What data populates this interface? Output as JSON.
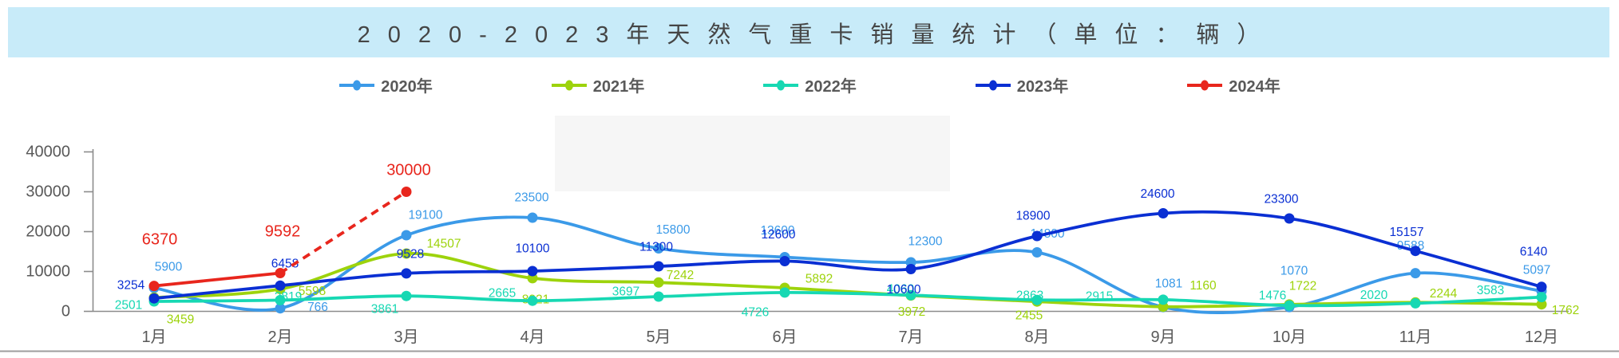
{
  "title": {
    "text": "2020-2023年天然气重卡销量统计（单位：辆）"
  },
  "colors": {
    "title_bar_bg": "#C8EBF9",
    "title_text": "#454545",
    "axis_text": "#595959",
    "axis_line": "#8C8C8C",
    "separator": "#9E9E9E"
  },
  "legend": {
    "items": [
      "2020年",
      "2021年",
      "2022年",
      "2023年",
      "2024年"
    ]
  },
  "chart_data": {
    "type": "line",
    "title": "2020-2023年天然气重卡销量统计（单位：辆）",
    "unit_label": "辆",
    "categories": [
      "1月",
      "2月",
      "3月",
      "4月",
      "5月",
      "6月",
      "7月",
      "8月",
      "9月",
      "10月",
      "11月",
      "12月"
    ],
    "yticks": [
      0,
      10000,
      20000,
      30000,
      40000
    ],
    "ylim": [
      0,
      40000
    ],
    "grid": false,
    "legend_position": "top",
    "series": [
      {
        "name": "2020年",
        "color": "#3B9AE8",
        "values": [
          5900,
          766,
          19100,
          23500,
          15800,
          13600,
          12300,
          14800,
          1081,
          1070,
          9588,
          5097
        ]
      },
      {
        "name": "2021年",
        "color": "#9DD30C",
        "values": [
          3459,
          5598,
          14507,
          8321,
          7242,
          5892,
          3972,
          2455,
          1160,
          1722,
          2244,
          1762
        ]
      },
      {
        "name": "2022年",
        "color": "#17D8B3",
        "values": [
          2501,
          2819,
          3861,
          2665,
          3697,
          4726,
          4060,
          2863,
          2915,
          1476,
          2020,
          3583
        ]
      },
      {
        "name": "2023年",
        "color": "#0A2FD3",
        "values": [
          3254,
          6458,
          9528,
          10100,
          11300,
          12600,
          10600,
          18900,
          24600,
          23300,
          15157,
          6140
        ]
      },
      {
        "name": "2024年",
        "color": "#E8261D",
        "values": [
          6370,
          9592,
          30000
        ],
        "line_style": "solid then dashed (2月→3月 dashed)"
      }
    ]
  }
}
